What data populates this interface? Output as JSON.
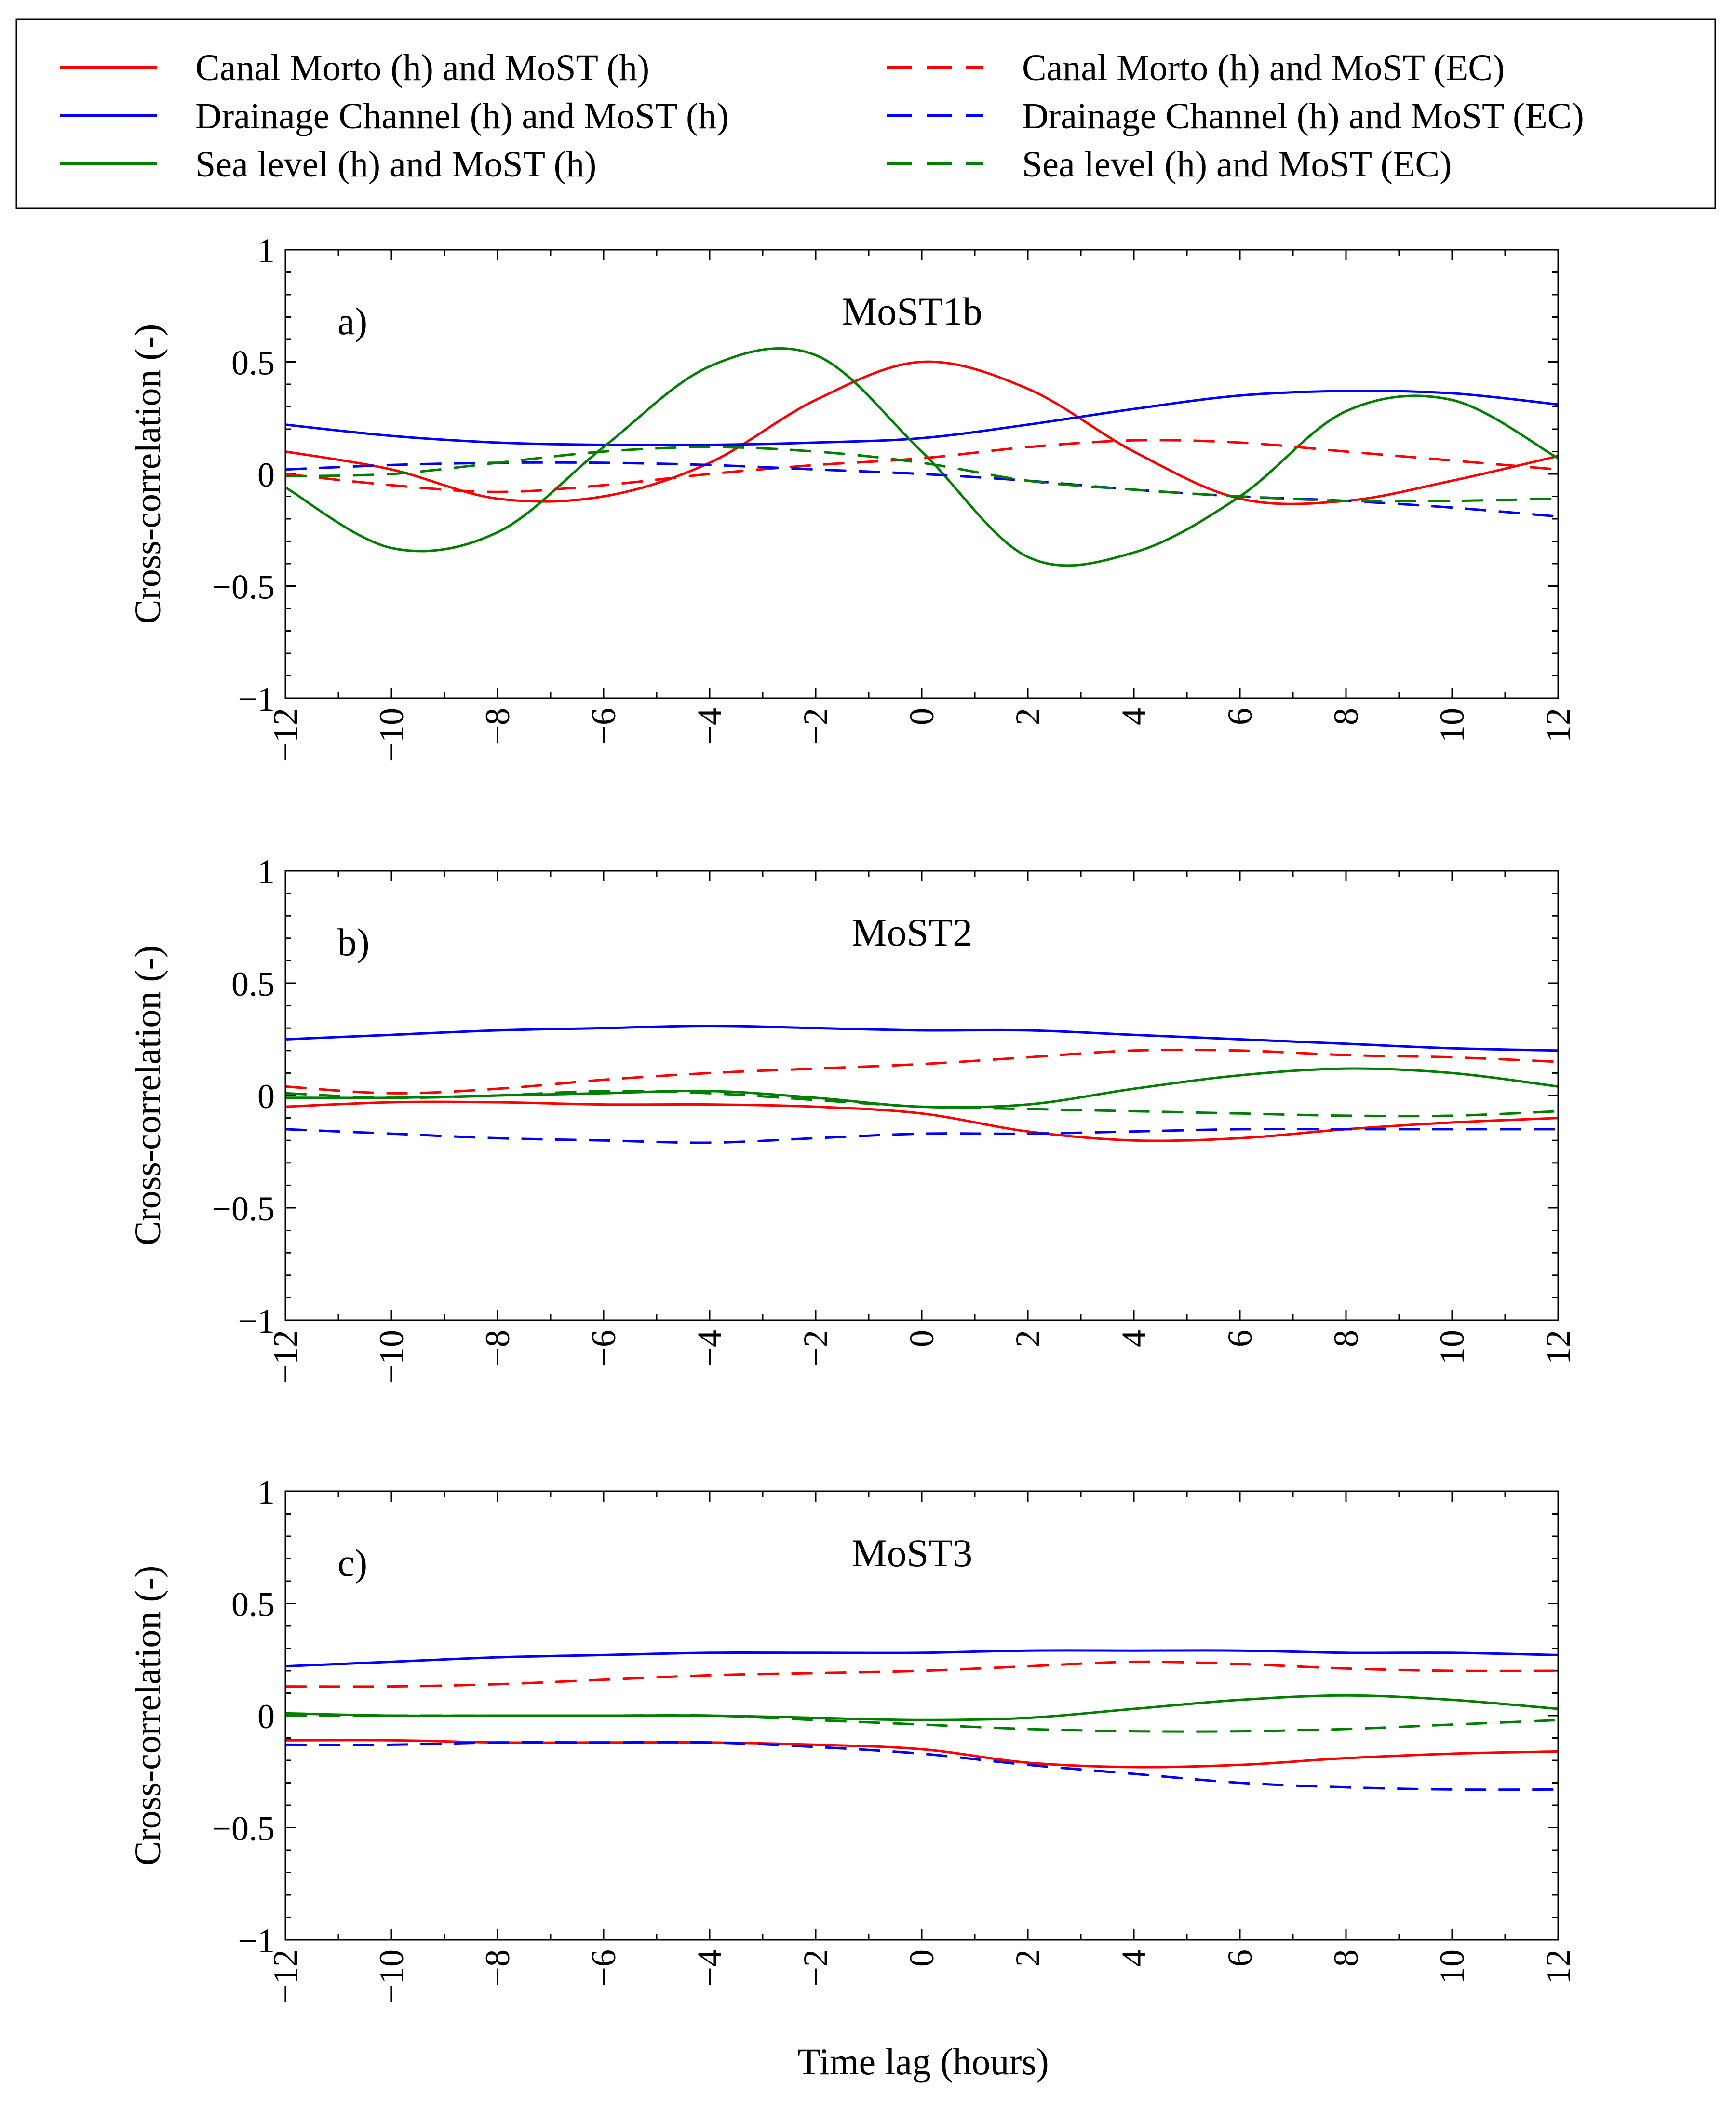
{
  "figure": {
    "xlabel": "Time lag (hours)",
    "ylabel": "Cross-correlation (-)"
  },
  "legend": {
    "placement": "top",
    "entries": [
      {
        "label": "Canal Morto (h) and MoST (h)",
        "color": "#ff0000",
        "style": "solid"
      },
      {
        "label": "Drainage Channel (h) and MoST (h)",
        "color": "#0000ff",
        "style": "solid"
      },
      {
        "label": "Sea level (h) and MoST (h)",
        "color": "#008000",
        "style": "solid"
      },
      {
        "label": "Canal Morto (h) and MoST (EC)",
        "color": "#ff0000",
        "style": "dashed"
      },
      {
        "label": "Drainage Channel (h) and MoST (EC)",
        "color": "#0000ff",
        "style": "dashed"
      },
      {
        "label": "Sea level (h) and MoST (EC)",
        "color": "#008000",
        "style": "dashed"
      }
    ]
  },
  "chart_data": [
    {
      "type": "line",
      "panel_label": "a)",
      "title": "MoST1b",
      "xlabel": "",
      "ylabel": "Cross-correlation (-)",
      "xlim": [
        -12,
        12
      ],
      "ylim": [
        -1,
        1
      ],
      "xticks": [
        "−12",
        "−10",
        "−8",
        "−6",
        "−4",
        "−2",
        "0",
        "2",
        "4",
        "6",
        "8",
        "10",
        "12"
      ],
      "yticks": [
        "1",
        "0.5",
        "0",
        "−0.5",
        "−1"
      ],
      "x": [
        -12,
        -10,
        -8,
        -6,
        -4,
        -2,
        0,
        2,
        4,
        6,
        8,
        10,
        12
      ],
      "series": [
        {
          "name": "Canal Morto (h) and MoST (h)",
          "color": "#ff0000",
          "style": "solid",
          "values": [
            0.1,
            0.02,
            -0.11,
            -0.1,
            0.05,
            0.33,
            0.5,
            0.38,
            0.1,
            -0.11,
            -0.12,
            -0.03,
            0.08
          ]
        },
        {
          "name": "Drainage Channel (h) and MoST (h)",
          "color": "#0000ff",
          "style": "solid",
          "values": [
            0.22,
            0.17,
            0.14,
            0.13,
            0.13,
            0.14,
            0.16,
            0.22,
            0.29,
            0.35,
            0.37,
            0.36,
            0.31
          ]
        },
        {
          "name": "Sea level (h) and MoST (h)",
          "color": "#008000",
          "style": "solid",
          "values": [
            -0.06,
            -0.33,
            -0.26,
            0.12,
            0.48,
            0.53,
            0.1,
            -0.37,
            -0.35,
            -0.1,
            0.28,
            0.33,
            0.07
          ]
        },
        {
          "name": "Canal Morto (h) and MoST (EC)",
          "color": "#ff0000",
          "style": "dashed",
          "values": [
            0.0,
            -0.05,
            -0.08,
            -0.05,
            0.0,
            0.04,
            0.07,
            0.12,
            0.15,
            0.14,
            0.1,
            0.06,
            0.02
          ]
        },
        {
          "name": "Drainage Channel (h) and MoST (EC)",
          "color": "#0000ff",
          "style": "dashed",
          "values": [
            0.02,
            0.04,
            0.05,
            0.05,
            0.04,
            0.02,
            0.0,
            -0.03,
            -0.07,
            -0.1,
            -0.12,
            -0.15,
            -0.19
          ]
        },
        {
          "name": "Sea level (h) and MoST (EC)",
          "color": "#008000",
          "style": "dashed",
          "values": [
            -0.01,
            0.0,
            0.05,
            0.1,
            0.12,
            0.1,
            0.05,
            -0.03,
            -0.07,
            -0.1,
            -0.12,
            -0.12,
            -0.11
          ]
        }
      ]
    },
    {
      "type": "line",
      "panel_label": "b)",
      "title": "MoST2",
      "xlabel": "",
      "ylabel": "Cross-correlation (-)",
      "xlim": [
        -12,
        12
      ],
      "ylim": [
        -1,
        1
      ],
      "xticks": [
        "−12",
        "−10",
        "−8",
        "−6",
        "−4",
        "−2",
        "0",
        "2",
        "4",
        "6",
        "8",
        "10",
        "12"
      ],
      "yticks": [
        "1",
        "0.5",
        "0",
        "−0.5",
        "−1"
      ],
      "x": [
        -12,
        -10,
        -8,
        -6,
        -4,
        -2,
        0,
        2,
        4,
        6,
        8,
        10,
        12
      ],
      "series": [
        {
          "name": "Canal Morto (h) and MoST (h)",
          "color": "#ff0000",
          "style": "solid",
          "values": [
            -0.05,
            -0.03,
            -0.03,
            -0.04,
            -0.04,
            -0.05,
            -0.08,
            -0.16,
            -0.2,
            -0.19,
            -0.15,
            -0.12,
            -0.1
          ]
        },
        {
          "name": "Drainage Channel (h) and MoST (h)",
          "color": "#0000ff",
          "style": "solid",
          "values": [
            0.25,
            0.27,
            0.29,
            0.3,
            0.31,
            0.3,
            0.29,
            0.29,
            0.27,
            0.25,
            0.23,
            0.21,
            0.2
          ]
        },
        {
          "name": "Sea level (h) and MoST (h)",
          "color": "#008000",
          "style": "solid",
          "values": [
            -0.01,
            -0.01,
            0.0,
            0.01,
            0.02,
            -0.01,
            -0.05,
            -0.04,
            0.03,
            0.09,
            0.12,
            0.1,
            0.04
          ]
        },
        {
          "name": "Canal Morto (h) and MoST (EC)",
          "color": "#ff0000",
          "style": "dashed",
          "values": [
            0.04,
            0.01,
            0.03,
            0.07,
            0.1,
            0.12,
            0.14,
            0.17,
            0.2,
            0.2,
            0.18,
            0.17,
            0.15
          ]
        },
        {
          "name": "Drainage Channel (h) and MoST (EC)",
          "color": "#0000ff",
          "style": "dashed",
          "values": [
            -0.15,
            -0.17,
            -0.19,
            -0.2,
            -0.21,
            -0.19,
            -0.17,
            -0.17,
            -0.16,
            -0.15,
            -0.15,
            -0.15,
            -0.15
          ]
        },
        {
          "name": "Sea level (h) and MoST (EC)",
          "color": "#008000",
          "style": "dashed",
          "values": [
            0.01,
            -0.01,
            0.0,
            0.02,
            0.01,
            -0.02,
            -0.05,
            -0.06,
            -0.07,
            -0.08,
            -0.09,
            -0.09,
            -0.07
          ]
        }
      ]
    },
    {
      "type": "line",
      "panel_label": "c)",
      "title": "MoST3",
      "xlabel": "Time lag (hours)",
      "ylabel": "Cross-correlation (-)",
      "xlim": [
        -12,
        12
      ],
      "ylim": [
        -1,
        1
      ],
      "xticks": [
        "−12",
        "−10",
        "−8",
        "−6",
        "−4",
        "−2",
        "0",
        "2",
        "4",
        "6",
        "8",
        "10",
        "12"
      ],
      "yticks": [
        "1",
        "0.5",
        "0",
        "−0.5",
        "−1"
      ],
      "x": [
        -12,
        -10,
        -8,
        -6,
        -4,
        -2,
        0,
        2,
        4,
        6,
        8,
        10,
        12
      ],
      "series": [
        {
          "name": "Canal Morto (h) and MoST (h)",
          "color": "#ff0000",
          "style": "solid",
          "values": [
            -0.11,
            -0.11,
            -0.12,
            -0.12,
            -0.12,
            -0.13,
            -0.15,
            -0.21,
            -0.23,
            -0.22,
            -0.19,
            -0.17,
            -0.16
          ]
        },
        {
          "name": "Drainage Channel (h) and MoST (h)",
          "color": "#0000ff",
          "style": "solid",
          "values": [
            0.22,
            0.24,
            0.26,
            0.27,
            0.28,
            0.28,
            0.28,
            0.29,
            0.29,
            0.29,
            0.28,
            0.28,
            0.27
          ]
        },
        {
          "name": "Sea level (h) and MoST (h)",
          "color": "#008000",
          "style": "solid",
          "values": [
            0.01,
            0.0,
            0.0,
            0.0,
            0.0,
            -0.01,
            -0.02,
            -0.01,
            0.03,
            0.07,
            0.09,
            0.07,
            0.03
          ]
        },
        {
          "name": "Canal Morto (h) and MoST (EC)",
          "color": "#ff0000",
          "style": "dashed",
          "values": [
            0.13,
            0.13,
            0.14,
            0.16,
            0.18,
            0.19,
            0.2,
            0.22,
            0.24,
            0.23,
            0.21,
            0.2,
            0.2
          ]
        },
        {
          "name": "Drainage Channel (h) and MoST (EC)",
          "color": "#0000ff",
          "style": "dashed",
          "values": [
            -0.13,
            -0.13,
            -0.12,
            -0.12,
            -0.12,
            -0.14,
            -0.17,
            -0.22,
            -0.26,
            -0.3,
            -0.32,
            -0.33,
            -0.33
          ]
        },
        {
          "name": "Sea level (h) and MoST (EC)",
          "color": "#008000",
          "style": "dashed",
          "values": [
            0.0,
            0.0,
            0.0,
            0.0,
            0.0,
            -0.02,
            -0.04,
            -0.06,
            -0.07,
            -0.07,
            -0.06,
            -0.04,
            -0.02
          ]
        }
      ]
    }
  ]
}
